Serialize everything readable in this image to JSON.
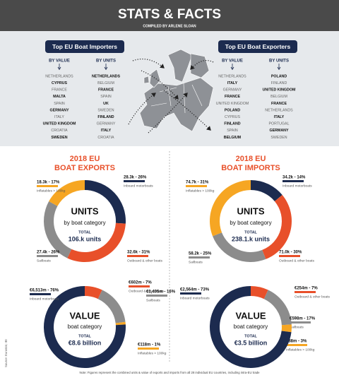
{
  "header": {
    "title": "STATS & FACTS",
    "subtitle": "COMPILED BY ARLENE SLOAN"
  },
  "importers": {
    "title": "Top EU Boat Importers",
    "columns": [
      {
        "heading": "BY VALUE",
        "items": [
          "NETHERLANDS",
          "CYPRUS",
          "FRANCE",
          "MALTA",
          "SPAIN",
          "GERMANY",
          "ITALY",
          "UNITED KINGDOM",
          "CROATIA",
          "SWEDEN"
        ]
      },
      {
        "heading": "BY UNITS",
        "items": [
          "NETHERLANDS",
          "BELGIUM",
          "FRANCE",
          "SPAIN",
          "UK",
          "SWEDEN",
          "FINLAND",
          "GERMANY",
          "ITALY",
          "CROATIA"
        ]
      }
    ]
  },
  "exporters": {
    "title": "Top EU Boat Exporters",
    "columns": [
      {
        "heading": "BY VALUE",
        "items": [
          "NETHERLANDS",
          "ITALY",
          "GERMANY",
          "FRANCE",
          "UNITED KINGDOM",
          "POLAND",
          "CYPRUS",
          "FINLAND",
          "SPAIN",
          "BELGIUM"
        ]
      },
      {
        "heading": "BY UNITS",
        "items": [
          "POLAND",
          "FINLAND",
          "UNITED KINGDOM",
          "BELGIUM",
          "FRANCE",
          "NETHERLANDS",
          "ITALY",
          "PORTUGAL",
          "GERMANY",
          "SWEDEN"
        ]
      }
    ]
  },
  "sections": [
    {
      "title_line1": "2018 EU",
      "title_line2": "BOAT EXPORTS",
      "donuts": [
        {
          "heading": "UNITS",
          "subheading": "by boat category",
          "total_label": "TOTAL",
          "total": "106.k units",
          "segments": [
            {
              "name": "Inboard motorboats",
              "value": 26,
              "value_label": "28.3k - 26%",
              "color": "#1c2b4f"
            },
            {
              "name": "Outboard & other boats",
              "value": 31,
              "value_label": "32.6k - 31%",
              "color": "#e8502a"
            },
            {
              "name": "Sailboats",
              "value": 26,
              "value_label": "27.4k - 26%",
              "color": "#8c8c8c"
            },
            {
              "name": "Inflatables > 100kg",
              "value": 17,
              "value_label": "18.3k - 17%",
              "color": "#f6a623"
            }
          ]
        },
        {
          "heading": "VALUE",
          "subheading": "boat category",
          "total_label": "TOTAL",
          "total": "€8.6 billion",
          "segments": [
            {
              "name": "Outboard & other boats",
              "value": 7,
              "value_label": "€602m - 7%",
              "color": "#e8502a"
            },
            {
              "name": "Sailboats",
              "value": 16,
              "value_label": "€1,405m - 16%",
              "color": "#8c8c8c"
            },
            {
              "name": "Inflatables > 100kg",
              "value": 1,
              "value_label": "€118m - 1%",
              "color": "#f6a623"
            },
            {
              "name": "Inboard motorboats",
              "value": 76,
              "value_label": "€6,513m - 76%",
              "color": "#1c2b4f"
            }
          ]
        }
      ]
    },
    {
      "title_line1": "2018 EU",
      "title_line2": "BOAT IMPORTS",
      "donuts": [
        {
          "heading": "UNITS",
          "subheading": "by boat category",
          "total_label": "TOTAL",
          "total": "238.1.k units",
          "segments": [
            {
              "name": "Inboard motorboats",
              "value": 14,
              "value_label": "34.2k - 14%",
              "color": "#1c2b4f"
            },
            {
              "name": "Outboard & other boats",
              "value": 30,
              "value_label": "71.0k - 30%",
              "color": "#e8502a"
            },
            {
              "name": "Sailboats",
              "value": 25,
              "value_label": "58.2k - 25%",
              "color": "#8c8c8c"
            },
            {
              "name": "Inflatables > 100kg",
              "value": 31,
              "value_label": "74.7k - 31%",
              "color": "#f6a623"
            }
          ]
        },
        {
          "heading": "VALUE",
          "subheading": "boat category",
          "total_label": "TOTAL",
          "total": "€3.5 billion",
          "segments": [
            {
              "name": "Outboard & other boats",
              "value": 7,
              "value_label": "€254m - 7%",
              "color": "#e8502a"
            },
            {
              "name": "Sailboats",
              "value": 17,
              "value_label": "€598m - 17%",
              "color": "#8c8c8c"
            },
            {
              "name": "Inflatables > 100kg",
              "value": 3,
              "value_label": "€88m - 3%",
              "color": "#f6a623"
            },
            {
              "name": "Inboard motorboats",
              "value": 73,
              "value_label": "€2,564m - 73%",
              "color": "#1c2b4f"
            }
          ]
        }
      ]
    }
  ],
  "note": "Note: Figures represent the combined units & value of exports and imports from all 28 individual EU countries, including intra-EU trade",
  "source": "Source: Eurostat, IBI"
}
